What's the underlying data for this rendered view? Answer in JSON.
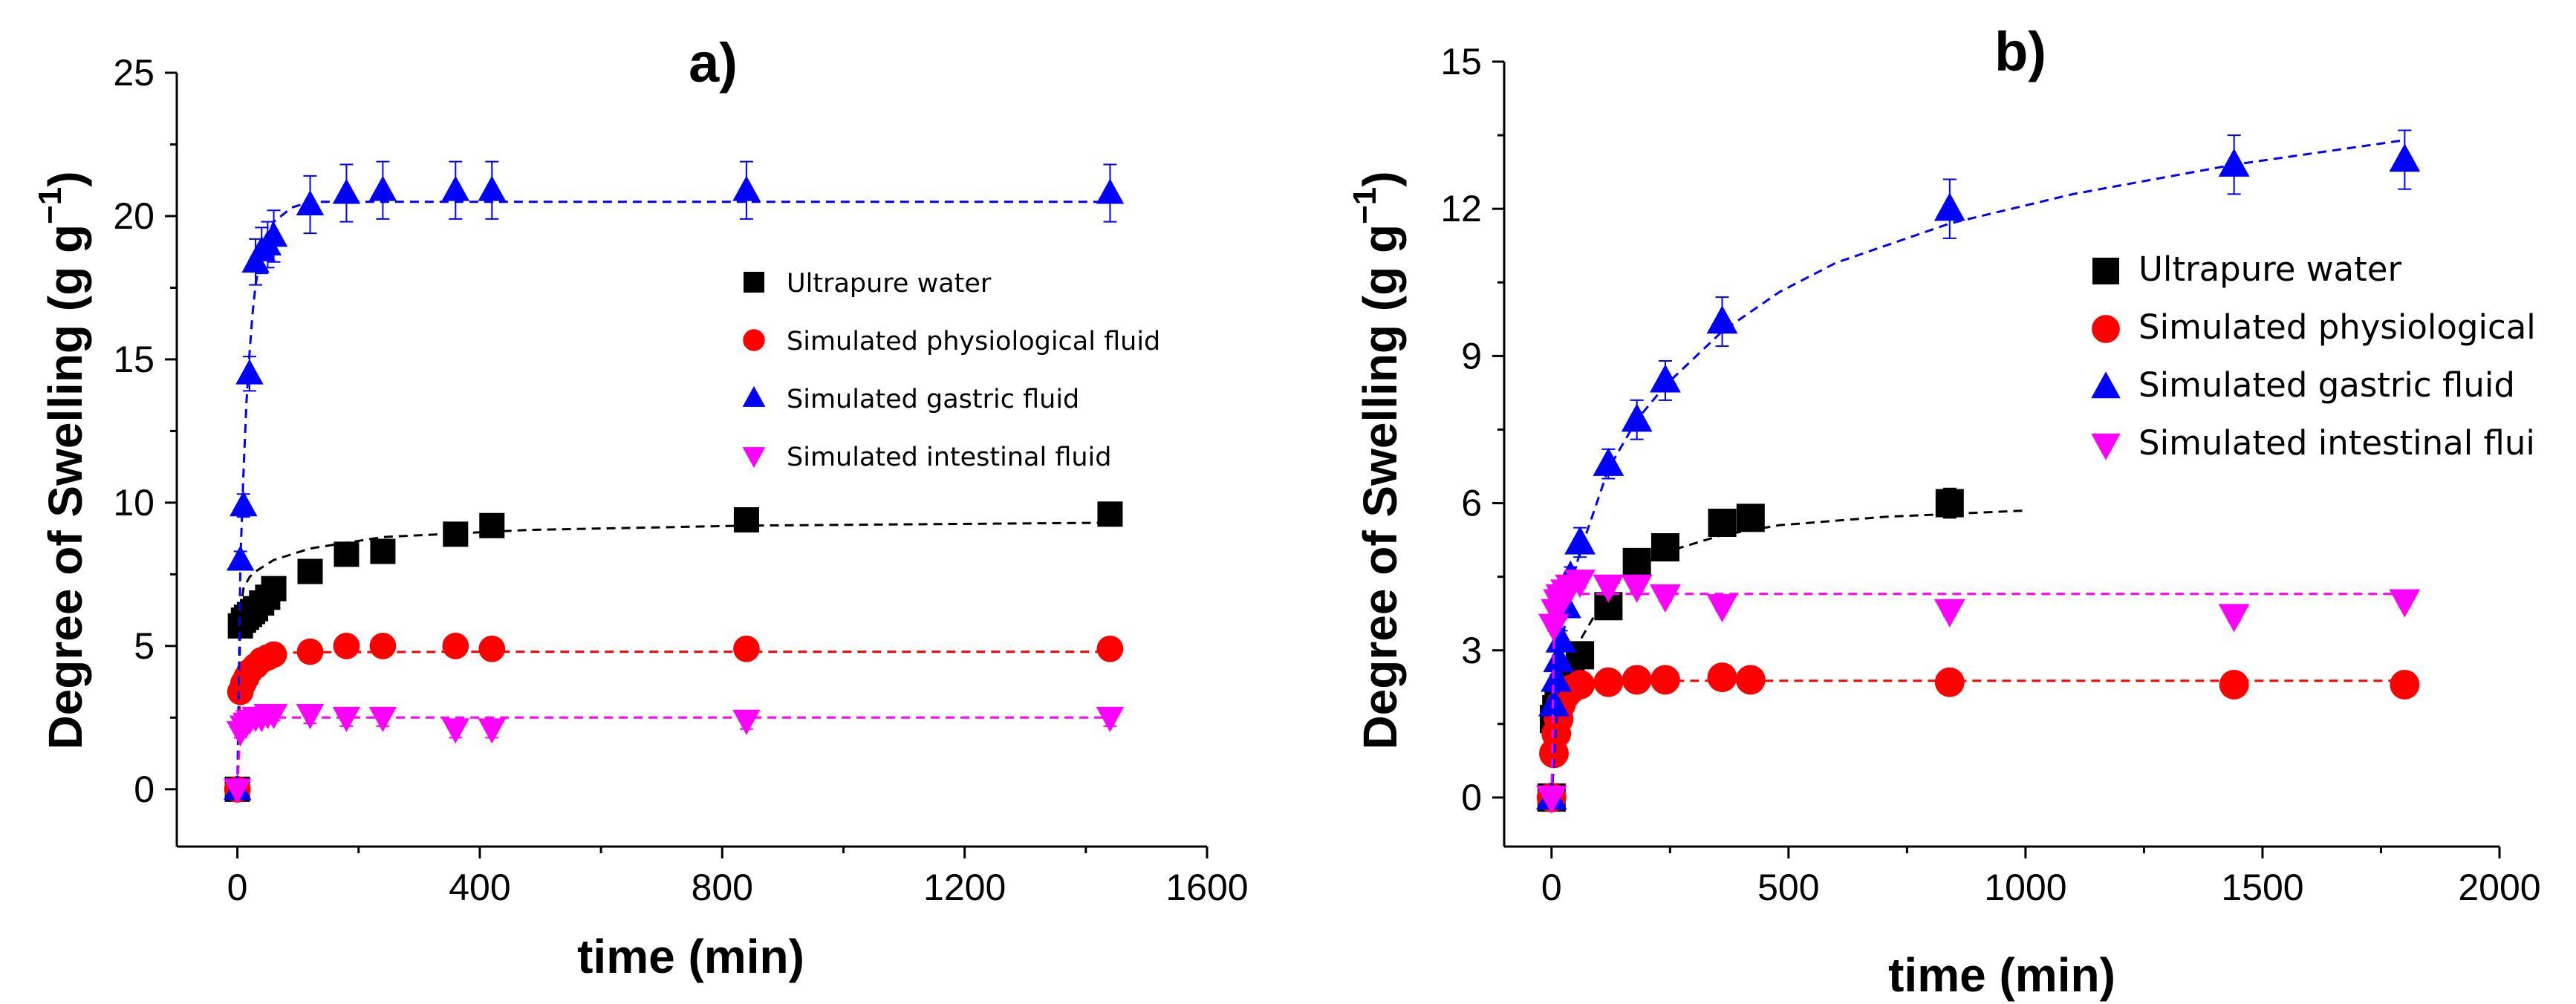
{
  "chart_data": [
    {
      "type": "scatter",
      "panel_label": "a)",
      "title": "a)",
      "xlabel": "time (min)",
      "ylabel": "Degree of Swelling (g g",
      "ylabel_sup": "−1",
      "ylabel_close": ")",
      "xlim": [
        -100,
        1600
      ],
      "ylim": [
        -2,
        25
      ],
      "xticks": [
        0,
        400,
        800,
        1200,
        1600
      ],
      "yticks": [
        0,
        5,
        10,
        15,
        20,
        25
      ],
      "xtick_labels": [
        "0",
        "400",
        "800",
        "1200",
        "1600"
      ],
      "ytick_labels": [
        "0",
        "5",
        "10",
        "15",
        "20",
        "25"
      ],
      "legend_position": "center-right",
      "series": [
        {
          "name": "Ultrapure water",
          "marker": "square",
          "color": "#000000",
          "x": [
            0,
            5,
            10,
            15,
            20,
            25,
            30,
            40,
            50,
            60,
            120,
            180,
            240,
            360,
            420,
            840,
            1440
          ],
          "y": [
            0,
            5.7,
            5.9,
            6.0,
            6.1,
            6.2,
            6.3,
            6.5,
            6.7,
            7.0,
            7.6,
            8.2,
            8.3,
            8.9,
            9.2,
            9.4,
            9.6
          ],
          "fit": {
            "x": [
              0,
              5,
              10,
              20,
              30,
              60,
              120,
              240,
              480,
              840,
              1440
            ],
            "y": [
              0,
              6.2,
              7.0,
              7.4,
              7.6,
              8.0,
              8.4,
              8.8,
              9.05,
              9.2,
              9.3
            ]
          }
        },
        {
          "name": "Simulated physiological fluid",
          "marker": "circle",
          "color": "#ff0000",
          "x": [
            0,
            5,
            10,
            15,
            20,
            30,
            40,
            50,
            60,
            120,
            180,
            240,
            360,
            420,
            840,
            1440
          ],
          "y": [
            0,
            3.4,
            3.7,
            3.9,
            4.1,
            4.3,
            4.5,
            4.6,
            4.7,
            4.8,
            5.0,
            5.0,
            5.0,
            4.9,
            4.9,
            4.9
          ],
          "fit": {
            "x": [
              0,
              5,
              10,
              20,
              30,
              60,
              120,
              420,
              840,
              1440
            ],
            "y": [
              0,
              3.8,
              4.3,
              4.6,
              4.7,
              4.75,
              4.78,
              4.8,
              4.8,
              4.8
            ]
          }
        },
        {
          "name": "Simulated gastric fluid",
          "marker": "triangle-up",
          "color": "#0000ff",
          "x": [
            0,
            5,
            10,
            20,
            30,
            40,
            50,
            60,
            120,
            180,
            240,
            360,
            420,
            840,
            1440
          ],
          "y": [
            0,
            8.0,
            9.9,
            14.5,
            18.4,
            18.8,
            19.0,
            19.3,
            20.4,
            20.8,
            20.9,
            20.9,
            20.9,
            20.9,
            20.8
          ],
          "err": [
            0,
            0.3,
            0.4,
            0.6,
            0.8,
            0.8,
            0.8,
            0.9,
            1.0,
            1.0,
            1.0,
            1.0,
            1.0,
            1.0,
            1.0
          ],
          "fit": {
            "x": [
              0,
              5,
              10,
              15,
              20,
              25,
              30,
              40,
              60,
              90,
              120,
              240,
              840,
              1440
            ],
            "y": [
              0,
              8.0,
              11.0,
              13.5,
              15.2,
              16.6,
              17.6,
              18.8,
              19.8,
              20.3,
              20.5,
              20.5,
              20.5,
              20.5
            ]
          }
        },
        {
          "name": "Simulated intestinal fluid",
          "marker": "triangle-down",
          "color": "#ff00ff",
          "x": [
            0,
            5,
            10,
            15,
            20,
            30,
            40,
            50,
            60,
            120,
            180,
            240,
            360,
            420,
            840,
            1440
          ],
          "y": [
            0,
            2.0,
            2.2,
            2.3,
            2.4,
            2.5,
            2.5,
            2.6,
            2.6,
            2.6,
            2.5,
            2.5,
            2.1,
            2.1,
            2.4,
            2.5
          ],
          "err": [
            0,
            0.2,
            0.2,
            0.2,
            0.2,
            0.2,
            0.2,
            0.2,
            0.2,
            0.3,
            0.3,
            0.3,
            0.3,
            0.3,
            0.3,
            0.3
          ],
          "fit": {
            "x": [
              0,
              5,
              10,
              20,
              30,
              60,
              240,
              840,
              1440
            ],
            "y": [
              0,
              2.2,
              2.4,
              2.5,
              2.5,
              2.5,
              2.5,
              2.5,
              2.5
            ]
          }
        }
      ]
    },
    {
      "type": "scatter",
      "panel_label": "b)",
      "title": "b)",
      "xlabel": "time (min)",
      "ylabel": "Degree of Swelling (g g",
      "ylabel_sup": "−1",
      "ylabel_close": ")",
      "xlim": [
        -100,
        2000
      ],
      "ylim": [
        -1,
        15
      ],
      "xticks": [
        0,
        500,
        1000,
        1500,
        2000
      ],
      "yticks": [
        0,
        3,
        6,
        9,
        12,
        15
      ],
      "xtick_labels": [
        "0",
        "500",
        "1000",
        "1500",
        "2000"
      ],
      "ytick_labels": [
        "0",
        "3",
        "6",
        "9",
        "12",
        "15"
      ],
      "legend_position": "center-right",
      "series": [
        {
          "name": "Ultrapure water",
          "marker": "square",
          "color": "#000000",
          "x": [
            0,
            5,
            10,
            15,
            20,
            30,
            40,
            60,
            120,
            180,
            240,
            360,
            420,
            840
          ],
          "y": [
            0,
            1.6,
            1.8,
            2.0,
            2.1,
            2.3,
            2.5,
            2.9,
            3.9,
            4.8,
            5.1,
            5.6,
            5.7,
            6.0
          ],
          "err": [
            0,
            0.1,
            0.1,
            0.1,
            0.1,
            0.1,
            0.1,
            0.1,
            0.2,
            0.2,
            0.2,
            0.2,
            0.2,
            0.3
          ],
          "fit": {
            "x": [
              0,
              10,
              30,
              60,
              120,
              180,
              240,
              360,
              480,
              700,
              1000
            ],
            "y": [
              0,
              1.5,
              2.4,
              3.2,
              4.2,
              4.7,
              5.0,
              5.35,
              5.55,
              5.72,
              5.85
            ]
          }
        },
        {
          "name": "Simulated physiological",
          "marker": "circle",
          "color": "#ff0000",
          "x": [
            0,
            5,
            10,
            15,
            20,
            30,
            40,
            60,
            120,
            180,
            240,
            360,
            420,
            840,
            1440,
            1800
          ],
          "y": [
            0,
            0.9,
            1.3,
            1.6,
            1.9,
            2.1,
            2.2,
            2.3,
            2.35,
            2.4,
            2.4,
            2.45,
            2.4,
            2.35,
            2.3,
            2.3
          ],
          "fit": {
            "x": [
              0,
              5,
              10,
              20,
              30,
              60,
              120,
              600,
              1200,
              1800
            ],
            "y": [
              0,
              1.2,
              1.7,
              2.1,
              2.25,
              2.35,
              2.38,
              2.38,
              2.38,
              2.38
            ]
          }
        },
        {
          "name": "Simulated gastric fluid",
          "marker": "triangle-up",
          "color": "#0000ff",
          "x": [
            0,
            5,
            10,
            15,
            20,
            30,
            40,
            60,
            120,
            180,
            240,
            360,
            840,
            1440,
            1800
          ],
          "y": [
            0,
            1.9,
            2.4,
            2.8,
            3.2,
            3.9,
            4.5,
            5.2,
            6.8,
            7.7,
            8.5,
            9.7,
            12.0,
            12.9,
            13.0
          ],
          "err": [
            0,
            0.1,
            0.1,
            0.1,
            0.2,
            0.2,
            0.2,
            0.3,
            0.3,
            0.4,
            0.4,
            0.5,
            0.6,
            0.6,
            0.6
          ],
          "fit": {
            "x": [
              0,
              20,
              40,
              60,
              120,
              180,
              240,
              360,
              480,
              600,
              840,
              1100,
              1440,
              1800
            ],
            "y": [
              0,
              3.0,
              4.3,
              5.0,
              6.7,
              7.7,
              8.4,
              9.5,
              10.3,
              10.9,
              11.7,
              12.3,
              12.9,
              13.4
            ]
          }
        },
        {
          "name": "Simulated intestinal flui",
          "marker": "triangle-down",
          "color": "#ff00ff",
          "x": [
            0,
            5,
            10,
            15,
            20,
            30,
            40,
            60,
            120,
            180,
            240,
            360,
            840,
            1440,
            1800
          ],
          "y": [
            0,
            3.5,
            3.8,
            4.0,
            4.1,
            4.2,
            4.3,
            4.4,
            4.3,
            4.3,
            4.1,
            3.9,
            3.8,
            3.7,
            4.0
          ],
          "err": [
            0,
            0.1,
            0.1,
            0.1,
            0.1,
            0.1,
            0.1,
            0.1,
            0.1,
            0.1,
            0.1,
            0.1,
            0.1,
            0.1,
            0.1
          ],
          "fit": {
            "x": [
              0,
              5,
              10,
              20,
              30,
              600,
              1200,
              1800
            ],
            "y": [
              0,
              3.3,
              3.9,
              4.1,
              4.15,
              4.15,
              4.15,
              4.15
            ]
          }
        }
      ]
    }
  ]
}
